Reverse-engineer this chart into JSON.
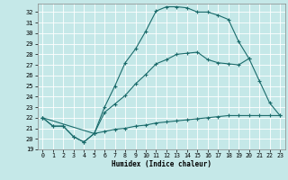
{
  "xlabel": "Humidex (Indice chaleur)",
  "background_color": "#c5e8e8",
  "line_color": "#1a6b6b",
  "xlim": [
    -0.5,
    23.5
  ],
  "ylim": [
    19,
    32.8
  ],
  "yticks": [
    19,
    20,
    21,
    22,
    23,
    24,
    25,
    26,
    27,
    28,
    29,
    30,
    31,
    32
  ],
  "xticks": [
    0,
    1,
    2,
    3,
    4,
    5,
    6,
    7,
    8,
    9,
    10,
    11,
    12,
    13,
    14,
    15,
    16,
    17,
    18,
    19,
    20,
    21,
    22,
    23
  ],
  "line1_x": [
    0,
    1,
    2,
    3,
    4,
    5,
    6,
    7,
    8,
    9,
    10,
    11,
    12,
    13,
    14,
    15,
    16,
    17,
    18,
    19,
    20,
    21,
    22,
    23
  ],
  "line1_y": [
    22,
    21.2,
    21.2,
    20.2,
    19.7,
    20.5,
    23.0,
    25.0,
    27.2,
    28.5,
    30.2,
    32.1,
    32.5,
    32.5,
    32.4,
    32.0,
    32.0,
    31.7,
    31.3,
    29.2,
    27.6,
    null,
    null,
    null
  ],
  "line2_x": [
    0,
    5,
    6,
    7,
    8,
    9,
    10,
    11,
    12,
    13,
    14,
    15,
    16,
    17,
    18,
    19,
    20,
    21,
    22,
    23
  ],
  "line2_y": [
    22,
    20.5,
    22.5,
    23.3,
    24.1,
    25.2,
    26.1,
    27.1,
    27.5,
    28.0,
    28.1,
    28.2,
    27.5,
    27.2,
    27.1,
    27.0,
    27.6,
    25.5,
    23.4,
    22.2
  ],
  "line3_x": [
    0,
    1,
    2,
    3,
    4,
    5,
    6,
    7,
    8,
    9,
    10,
    11,
    12,
    13,
    14,
    15,
    16,
    17,
    18,
    19,
    20,
    21,
    22,
    23
  ],
  "line3_y": [
    22,
    21.2,
    21.2,
    20.2,
    19.7,
    20.5,
    20.7,
    20.9,
    21.0,
    21.2,
    21.3,
    21.5,
    21.6,
    21.7,
    21.8,
    21.9,
    22.0,
    22.1,
    22.2,
    22.2,
    22.2,
    22.2,
    22.2,
    22.2
  ]
}
